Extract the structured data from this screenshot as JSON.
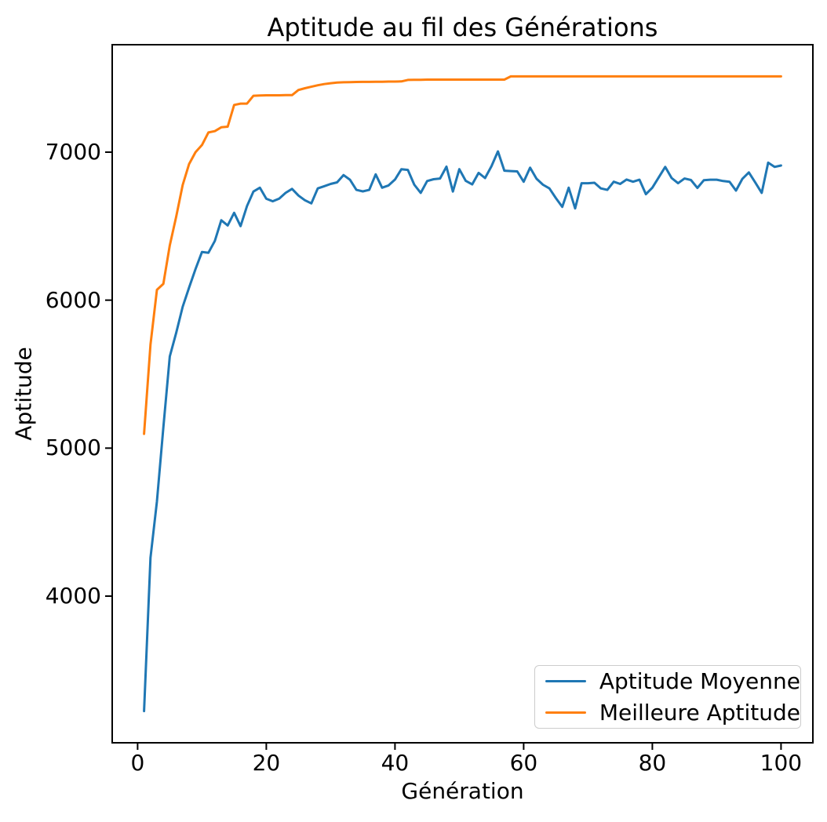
{
  "title": "Aptitude au fil des Générations",
  "x_axis": {
    "label": "Génération",
    "ticks": [
      0,
      20,
      40,
      60,
      80,
      100
    ]
  },
  "y_axis": {
    "label": "Aptitude",
    "ticks": [
      4000,
      5000,
      6000,
      7000
    ]
  },
  "legend": {
    "position": "lower right",
    "items": [
      "Aptitude Moyenne",
      "Meilleure Aptitude"
    ]
  },
  "chart_data": {
    "type": "line",
    "title": "Aptitude au fil des Générations",
    "xlabel": "Génération",
    "ylabel": "Aptitude",
    "xlim": [
      -3.95,
      104.95
    ],
    "ylim": [
      3009,
      7726
    ],
    "grid": false,
    "legend_position": "lower right",
    "x": [
      1,
      2,
      3,
      4,
      5,
      6,
      7,
      8,
      9,
      10,
      11,
      12,
      13,
      14,
      15,
      16,
      17,
      18,
      19,
      20,
      21,
      22,
      23,
      24,
      25,
      26,
      27,
      28,
      29,
      30,
      31,
      32,
      33,
      34,
      35,
      36,
      37,
      38,
      39,
      40,
      41,
      42,
      43,
      44,
      45,
      46,
      47,
      48,
      49,
      50,
      51,
      52,
      53,
      54,
      55,
      56,
      57,
      58,
      59,
      60,
      61,
      62,
      63,
      64,
      65,
      66,
      67,
      68,
      69,
      70,
      71,
      72,
      73,
      74,
      75,
      76,
      77,
      78,
      79,
      80,
      81,
      82,
      83,
      84,
      85,
      86,
      87,
      88,
      89,
      90,
      91,
      92,
      93,
      94,
      95,
      96,
      97,
      98,
      99,
      100
    ],
    "series": [
      {
        "name": "Aptitude Moyenne",
        "color": "#1f77b4",
        "values": [
          3223,
          4260,
          4640,
          5140,
          5620,
          5780,
          5955,
          6085,
          6210,
          6325,
          6320,
          6400,
          6540,
          6505,
          6590,
          6500,
          6636,
          6734,
          6760,
          6685,
          6668,
          6686,
          6725,
          6752,
          6707,
          6675,
          6654,
          6755,
          6770,
          6785,
          6796,
          6845,
          6814,
          6745,
          6735,
          6745,
          6850,
          6760,
          6775,
          6815,
          6885,
          6880,
          6780,
          6725,
          6805,
          6817,
          6822,
          6902,
          6734,
          6885,
          6806,
          6782,
          6860,
          6825,
          6905,
          7005,
          6875,
          6872,
          6870,
          6800,
          6895,
          6820,
          6780,
          6755,
          6690,
          6630,
          6760,
          6620,
          6790,
          6790,
          6793,
          6755,
          6745,
          6800,
          6785,
          6815,
          6800,
          6814,
          6716,
          6760,
          6830,
          6900,
          6825,
          6790,
          6822,
          6812,
          6758,
          6810,
          6814,
          6814,
          6805,
          6800,
          6740,
          6820,
          6863,
          6795,
          6725,
          6929,
          6900,
          6910
        ]
      },
      {
        "name": "Meilleure Aptitude",
        "color": "#ff7f0e",
        "values": [
          5096,
          5700,
          6070,
          6110,
          6370,
          6565,
          6778,
          6920,
          7000,
          7048,
          7133,
          7142,
          7168,
          7172,
          7319,
          7328,
          7328,
          7381,
          7383,
          7384,
          7384,
          7384,
          7385,
          7385,
          7420,
          7432,
          7442,
          7452,
          7460,
          7466,
          7470,
          7472,
          7473,
          7474,
          7475,
          7475,
          7476,
          7476,
          7477,
          7477,
          7478,
          7488,
          7489,
          7489,
          7490,
          7490,
          7490,
          7490,
          7490,
          7490,
          7490,
          7490,
          7490,
          7490,
          7490,
          7490,
          7490,
          7512,
          7512,
          7512,
          7512,
          7512,
          7512,
          7512,
          7512,
          7512,
          7512,
          7512,
          7512,
          7512,
          7512,
          7512,
          7512,
          7512,
          7512,
          7512,
          7512,
          7512,
          7512,
          7512,
          7512,
          7512,
          7512,
          7512,
          7512,
          7512,
          7512,
          7512,
          7512,
          7512,
          7512,
          7512,
          7512,
          7512,
          7512,
          7512,
          7512,
          7512,
          7512,
          7512
        ]
      }
    ]
  }
}
